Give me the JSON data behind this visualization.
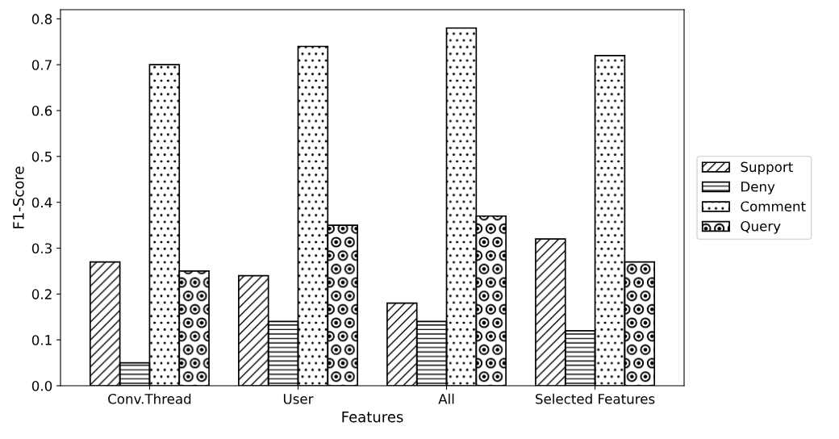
{
  "chart_data": {
    "type": "bar",
    "xlabel": "Features",
    "ylabel": "F1-Score",
    "categories": [
      "Conv.Thread",
      "User",
      "All",
      "Selected Features"
    ],
    "series": [
      {
        "name": "Support",
        "color": "#000000",
        "values": [
          0.27,
          0.24,
          0.18,
          0.32
        ]
      },
      {
        "name": "Deny",
        "color": "#000000",
        "values": [
          0.05,
          0.14,
          0.14,
          0.12
        ]
      },
      {
        "name": "Comment",
        "color": "#000000",
        "values": [
          0.7,
          0.74,
          0.78,
          0.72
        ]
      },
      {
        "name": "Query",
        "color": "#000000",
        "values": [
          0.25,
          0.35,
          0.37,
          0.27
        ]
      }
    ],
    "ylim": [
      0,
      0.82
    ],
    "yticks": [
      {
        "value": 0,
        "label": "0.0"
      },
      0.1,
      0.2,
      0.3,
      0.4,
      0.5,
      0.6,
      0.7,
      0.8
    ],
    "legend": "right",
    "grid": false
  }
}
